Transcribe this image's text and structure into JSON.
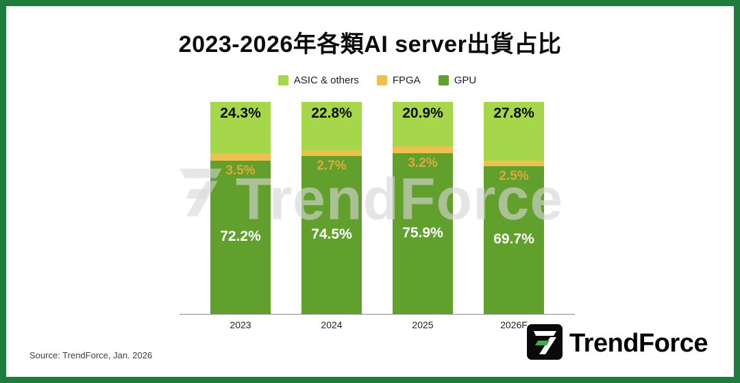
{
  "page": {
    "title": "2023-2026年各類AI server出貨占比",
    "source": "Source: TrendForce, Jan. 2026",
    "watermark": "TrendForce",
    "brand": "TrendForce"
  },
  "colors": {
    "border": "#1e7d3c",
    "gpu": "#62a02d",
    "fpga": "#ecc14f",
    "asic": "#a6d649",
    "gpu_label": "#ffffff",
    "fpga_label": "#dfa93a",
    "asic_label": "#0d0d0d",
    "watermark": "#d5d5d5",
    "brand_green": "#3fae49",
    "brand_black": "#000000"
  },
  "legend": [
    {
      "label": "ASIC & others",
      "color": "#a6d649"
    },
    {
      "label": "FPGA",
      "color": "#ecc14f"
    },
    {
      "label": "GPU",
      "color": "#62a02d"
    }
  ],
  "chart_data": {
    "type": "bar",
    "stacked": true,
    "title": "2023-2026年各類AI server出貨占比",
    "categories": [
      "2023",
      "2024",
      "2025",
      "2026F"
    ],
    "series": [
      {
        "name": "GPU",
        "color": "#62a02d",
        "label_color": "#ffffff",
        "values": [
          72.2,
          74.5,
          75.9,
          69.7
        ]
      },
      {
        "name": "FPGA",
        "color": "#ecc14f",
        "label_color": "#dfa93a",
        "values": [
          3.5,
          2.7,
          3.2,
          2.5
        ]
      },
      {
        "name": "ASIC & others",
        "color": "#a6d649",
        "label_color": "#0d0d0d",
        "values": [
          24.3,
          22.8,
          20.9,
          27.8
        ]
      }
    ],
    "ylim": [
      0,
      100
    ],
    "value_format": "percent",
    "legend_position": "top",
    "grid": false
  }
}
